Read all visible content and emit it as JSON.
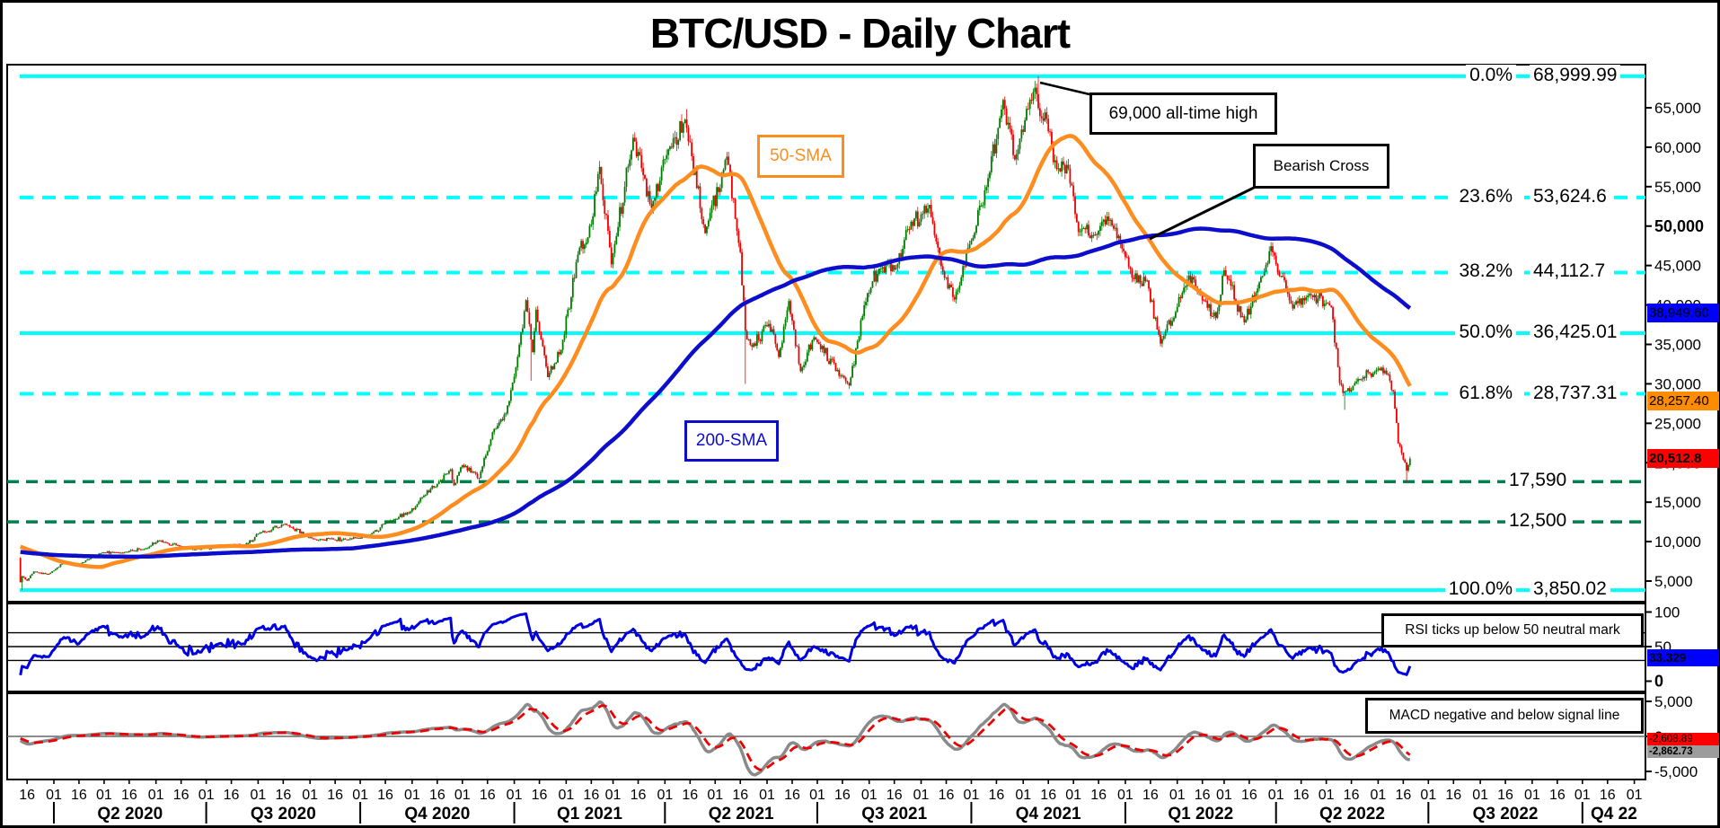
{
  "title": "BTC/USD - Daily Chart",
  "annotations": {
    "ath": "69,000 all-time high",
    "bearish_cross": "Bearish Cross",
    "sma50_label": "50-SMA",
    "sma200_label": "200-SMA",
    "rsi_note": "RSI ticks up below 50 neutral mark",
    "macd_note": "MACD negative and below signal line"
  },
  "price_tags": {
    "sma200_tag": {
      "text": "38,949.60",
      "value": 38949.6,
      "bg": "#0000ff"
    },
    "sma50_tag": {
      "text": "28,257.40",
      "value": 28257.4,
      "bg": "#ff8c00"
    },
    "last_price_tag": {
      "text": "20,512.8",
      "value": 20512.8,
      "bg": "#ff0000"
    },
    "rsi_tag": {
      "text": "33.329",
      "value": 33.329,
      "bg": "#0000ff"
    },
    "macd_signal_tag": {
      "text": "-2,608.89",
      "value": -2608.89,
      "bg": "#ff0000"
    },
    "macd_main_tag": {
      "text": "-2,862.73",
      "value": -2862.73,
      "bg": "#9c9c9c"
    }
  },
  "colors": {
    "fib": "#00ffff",
    "support": "#007f4e",
    "candle_up": "#007a00",
    "candle_down": "#ee0000",
    "sma50": "#ff8c1e",
    "sma200": "#0d0dcc",
    "rsi": "#0000e0",
    "macd": "#8a8a8a",
    "macd_signal": "#ee0000",
    "axis_text": "#000000"
  },
  "chart_data": {
    "type": "candlestick",
    "epoch": "2020-03-12",
    "x_range": [
      "2020-03-12",
      "2022-11-15"
    ],
    "y_axis": {
      "ticks": [
        {
          "label": "65,000",
          "value": 65000,
          "bold": false
        },
        {
          "label": "60,000",
          "value": 60000,
          "bold": false
        },
        {
          "label": "55,000",
          "value": 55000,
          "bold": false
        },
        {
          "label": "50,000",
          "value": 50000,
          "bold": true
        },
        {
          "label": "45,000",
          "value": 45000,
          "bold": false
        },
        {
          "label": "40,000",
          "value": 40000,
          "bold": false
        },
        {
          "label": "35,000",
          "value": 35000,
          "bold": false
        },
        {
          "label": "30,000",
          "value": 30000,
          "bold": false
        },
        {
          "label": "25,000",
          "value": 25000,
          "bold": false
        },
        {
          "label": "20,000",
          "value": 20000,
          "bold": false
        },
        {
          "label": "15,000",
          "value": 15000,
          "bold": false
        },
        {
          "label": "10,000",
          "value": 10000,
          "bold": false
        },
        {
          "label": "5,000",
          "value": 5000,
          "bold": false
        }
      ]
    },
    "rsi_axis": {
      "ticks": [
        {
          "label": "100",
          "value": 100,
          "bold": false
        },
        {
          "label": "50",
          "value": 50,
          "bold": false
        },
        {
          "label": "0",
          "value": 0,
          "bold": true
        }
      ],
      "guides": [
        70,
        50,
        30
      ]
    },
    "macd_axis": {
      "ticks": [
        {
          "label": "5,000",
          "value": 5000,
          "bold": false
        },
        {
          "label": "0",
          "value": 0,
          "bold": false
        },
        {
          "label": "-5,000",
          "value": -5000,
          "bold": false
        }
      ]
    },
    "fib_levels": [
      {
        "pct": "0.0%",
        "label": "68,999.99",
        "value": 68999.99,
        "style": "solid"
      },
      {
        "pct": "23.6%",
        "label": "53,624.6",
        "value": 53624.6,
        "style": "dashed"
      },
      {
        "pct": "38.2%",
        "label": "44,112.7",
        "value": 44112.7,
        "style": "dashed"
      },
      {
        "pct": "50.0%",
        "label": "36,425.01",
        "value": 36425.01,
        "style": "solid"
      },
      {
        "pct": "61.8%",
        "label": "28,737.31",
        "value": 28737.31,
        "style": "dashed"
      },
      {
        "pct": "100.0%",
        "label": "3,850.02",
        "value": 3850.02,
        "style": "solid"
      }
    ],
    "support_levels": [
      {
        "label": "17,590",
        "value": 17590
      },
      {
        "label": "12,500",
        "value": 12500
      }
    ],
    "x_axis": {
      "month_day_labels": [
        "16",
        "01"
      ],
      "quarters": [
        {
          "label": "Q2 2020",
          "start": "2020-04-01"
        },
        {
          "label": "Q3 2020",
          "start": "2020-07-01"
        },
        {
          "label": "Q4 2020",
          "start": "2020-10-01"
        },
        {
          "label": "Q1 2021",
          "start": "2021-01-01"
        },
        {
          "label": "Q2 2021",
          "start": "2021-04-01"
        },
        {
          "label": "Q3 2021",
          "start": "2021-07-01"
        },
        {
          "label": "Q4 2021",
          "start": "2021-10-01"
        },
        {
          "label": "Q1 2022",
          "start": "2022-01-01"
        },
        {
          "label": "Q2 2022",
          "start": "2022-04-01"
        },
        {
          "label": "Q3 2022",
          "start": "2022-07-01"
        },
        {
          "label": "Q4 22",
          "start": "2022-10-01"
        }
      ]
    },
    "indicators": {
      "sma_fast": 50,
      "sma_slow": 200,
      "rsi_period": 14,
      "macd": [
        12,
        26,
        9
      ]
    },
    "waypoints": [
      [
        "2019-08-25",
        10100
      ],
      [
        "2019-09-24",
        8600
      ],
      [
        "2019-10-26",
        9250
      ],
      [
        "2019-11-25",
        7300
      ],
      [
        "2019-12-18",
        7150
      ],
      [
        "2020-01-14",
        8825
      ],
      [
        "2020-02-12",
        10350
      ],
      [
        "2020-02-26",
        8850
      ],
      [
        "2020-03-07",
        8900
      ],
      [
        "2020-03-11",
        7935
      ],
      [
        "2020-03-12",
        4841
      ],
      [
        "2020-03-13",
        5600
      ],
      [
        "2020-03-16",
        5050
      ],
      [
        "2020-03-20",
        6200
      ],
      [
        "2020-03-29",
        5900
      ],
      [
        "2020-04-07",
        7350
      ],
      [
        "2020-04-16",
        7100
      ],
      [
        "2020-04-30",
        8620
      ],
      [
        "2020-05-10",
        8550
      ],
      [
        "2020-05-27",
        9180
      ],
      [
        "2020-06-02",
        10150
      ],
      [
        "2020-06-15",
        9450
      ],
      [
        "2020-06-27",
        9050
      ],
      [
        "2020-07-08",
        9375
      ],
      [
        "2020-07-24",
        9550
      ],
      [
        "2020-08-02",
        11100
      ],
      [
        "2020-08-17",
        12250
      ],
      [
        "2020-09-05",
        10150
      ],
      [
        "2020-09-13",
        10350
      ],
      [
        "2020-09-23",
        10250
      ],
      [
        "2020-10-04",
        10670
      ],
      [
        "2020-10-21",
        12800
      ],
      [
        "2020-10-31",
        13800
      ],
      [
        "2020-11-06",
        15550
      ],
      [
        "2020-11-18",
        17800
      ],
      [
        "2020-11-24",
        19150
      ],
      [
        "2020-11-26",
        17150
      ],
      [
        "2020-12-01",
        19700
      ],
      [
        "2020-12-11",
        18050
      ],
      [
        "2020-12-19",
        23850
      ],
      [
        "2020-12-27",
        26250
      ],
      [
        "2021-01-02",
        32100
      ],
      [
        "2021-01-08",
        40600
      ],
      [
        "2021-01-12",
        34000
      ],
      [
        "2021-01-14",
        39400
      ],
      [
        "2021-01-21",
        30850
      ],
      [
        "2021-01-29",
        34300
      ],
      [
        "2021-02-08",
        46400
      ],
      [
        "2021-02-14",
        48600
      ],
      [
        "2021-02-21",
        57500
      ],
      [
        "2021-02-28",
        45150
      ],
      [
        "2021-03-13",
        61200
      ],
      [
        "2021-03-24",
        52300
      ],
      [
        "2021-04-02",
        59000
      ],
      [
        "2021-04-13",
        63500
      ],
      [
        "2021-04-25",
        49100
      ],
      [
        "2021-05-08",
        58800
      ],
      [
        "2021-05-16",
        46700
      ],
      [
        "2021-05-19",
        36700
      ],
      [
        "2021-05-23",
        34700
      ],
      [
        "2021-06-02",
        37600
      ],
      [
        "2021-06-08",
        33400
      ],
      [
        "2021-06-14",
        40500
      ],
      [
        "2021-06-21",
        31600
      ],
      [
        "2021-06-29",
        35900
      ],
      [
        "2021-07-20",
        29800
      ],
      [
        "2021-07-25",
        35400
      ],
      [
        "2021-07-31",
        41500
      ],
      [
        "2021-08-07",
        44600
      ],
      [
        "2021-08-17",
        44700
      ],
      [
        "2021-08-23",
        49500
      ],
      [
        "2021-09-06",
        52700
      ],
      [
        "2021-09-13",
        44900
      ],
      [
        "2021-09-21",
        40700
      ],
      [
        "2021-10-01",
        48150
      ],
      [
        "2021-10-10",
        54950
      ],
      [
        "2021-10-20",
        66000
      ],
      [
        "2021-10-27",
        58450
      ],
      [
        "2021-11-08",
        67550
      ],
      [
        "2021-11-10",
        64950
      ],
      [
        "2021-11-15",
        63600
      ],
      [
        "2021-11-19",
        58100
      ],
      [
        "2021-11-28",
        57300
      ],
      [
        "2021-12-04",
        49250
      ],
      [
        "2021-12-15",
        48900
      ],
      [
        "2021-12-23",
        50800
      ],
      [
        "2021-12-30",
        47150
      ],
      [
        "2022-01-05",
        43450
      ],
      [
        "2022-01-14",
        43100
      ],
      [
        "2022-01-22",
        35100
      ],
      [
        "2022-02-04",
        41550
      ],
      [
        "2022-02-10",
        43550
      ],
      [
        "2022-02-17",
        40550
      ],
      [
        "2022-02-24",
        38350
      ],
      [
        "2022-03-01",
        44400
      ],
      [
        "2022-03-13",
        37800
      ],
      [
        "2022-03-22",
        42850
      ],
      [
        "2022-03-29",
        47450
      ],
      [
        "2022-04-11",
        39550
      ],
      [
        "2022-04-21",
        41400
      ],
      [
        "2022-05-04",
        39700
      ],
      [
        "2022-05-09",
        30100
      ],
      [
        "2022-05-12",
        29050
      ],
      [
        "2022-05-19",
        30300
      ],
      [
        "2022-05-31",
        31800
      ],
      [
        "2022-06-07",
        31150
      ],
      [
        "2022-06-10",
        29050
      ],
      [
        "2022-06-13",
        22450
      ],
      [
        "2022-06-16",
        20400
      ],
      [
        "2022-06-18",
        19000
      ],
      [
        "2022-06-20",
        20512.8
      ]
    ],
    "forced_extremes": [
      {
        "date": "2020-03-13",
        "low": 3850.02
      },
      {
        "date": "2021-01-11",
        "low": 30400
      },
      {
        "date": "2021-04-14",
        "high": 64850
      },
      {
        "date": "2021-05-19",
        "low": 30000
      },
      {
        "date": "2021-11-10",
        "high": 68999.99
      },
      {
        "date": "2022-05-12",
        "low": 26700
      },
      {
        "date": "2022-06-18",
        "low": 17590
      }
    ]
  }
}
